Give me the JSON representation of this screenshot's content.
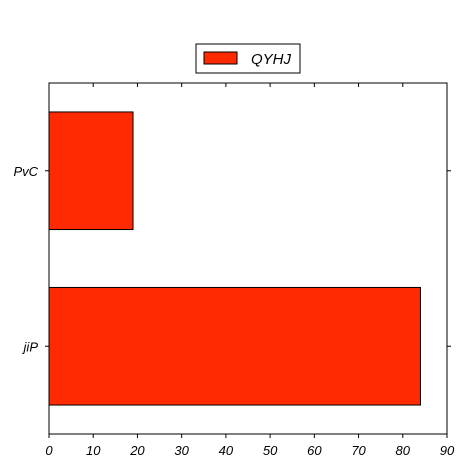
{
  "chart_data": {
    "type": "bar",
    "orientation": "horizontal",
    "categories": [
      "PvC",
      "jiP"
    ],
    "series": [
      {
        "name": "QYHJ",
        "values": [
          19,
          84
        ],
        "color": "#ff2a00"
      }
    ],
    "xlim": [
      0,
      90
    ],
    "xticks": [
      0,
      10,
      20,
      30,
      40,
      50,
      60,
      70,
      80,
      90
    ],
    "grid": false,
    "legend_position": "top-center"
  }
}
